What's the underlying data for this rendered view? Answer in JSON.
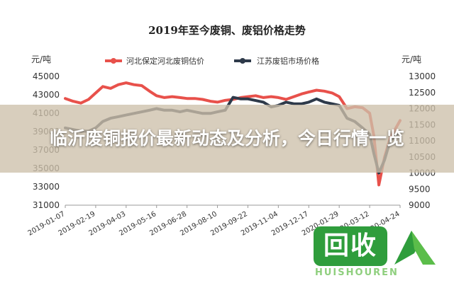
{
  "chart_data": {
    "type": "line",
    "title": "2019年至今废铜、废铝价格走势",
    "left_axis_unit": "元/吨",
    "right_axis_unit": "元/吨",
    "left_ylim": [
      31000,
      45000
    ],
    "left_ticks": [
      "45000",
      "43000",
      "41000",
      "39000",
      "37000",
      "35000",
      "33000",
      "31000"
    ],
    "right_ylim": [
      9000,
      13000
    ],
    "right_ticks": [
      "13000",
      "12500",
      "12000",
      "11500",
      "11000",
      "10500",
      "10000",
      "9500",
      "9000"
    ],
    "x_ticks": [
      "2019-01-07",
      "2019-02-19",
      "2019-04-03",
      "2019-05-16",
      "2019-06-28",
      "2019-08-10",
      "2019-09-22",
      "2019-11-04",
      "2019-12-17",
      "2020-01-29",
      "2020-03-12",
      "2020-04-24"
    ],
    "legend_position": "top",
    "series": [
      {
        "name": "河北保定河北废铜估价",
        "axis": "left",
        "color": "#e8514b",
        "x": [
          "2019-01-07",
          "2019-01-18",
          "2019-01-29",
          "2019-02-09",
          "2019-02-19",
          "2019-03-01",
          "2019-03-12",
          "2019-03-23",
          "2019-04-03",
          "2019-04-14",
          "2019-04-25",
          "2019-05-06",
          "2019-05-16",
          "2019-05-27",
          "2019-06-07",
          "2019-06-18",
          "2019-06-28",
          "2019-07-09",
          "2019-07-20",
          "2019-07-31",
          "2019-08-10",
          "2019-08-21",
          "2019-09-01",
          "2019-09-12",
          "2019-09-22",
          "2019-10-03",
          "2019-10-14",
          "2019-10-25",
          "2019-11-04",
          "2019-11-15",
          "2019-11-26",
          "2019-12-07",
          "2019-12-17",
          "2019-12-28",
          "2020-01-08",
          "2020-01-19",
          "2020-01-29",
          "2020-02-09",
          "2020-02-20",
          "2020-03-02",
          "2020-03-12",
          "2020-03-18",
          "2020-03-25",
          "2020-04-02",
          "2020-04-10",
          "2020-04-24"
        ],
        "values": [
          42600,
          42300,
          42100,
          42500,
          43200,
          43900,
          43700,
          44100,
          44300,
          44100,
          44000,
          43400,
          42900,
          42700,
          42800,
          42700,
          42600,
          42600,
          42500,
          42300,
          42200,
          42400,
          42500,
          42700,
          42800,
          42900,
          42700,
          42800,
          42700,
          42500,
          42800,
          43100,
          43300,
          43500,
          43400,
          43200,
          42800,
          41500,
          41700,
          41600,
          41000,
          38500,
          33200,
          36200,
          38300,
          40200
        ]
      },
      {
        "name": "江苏废铝市场价格",
        "axis": "right",
        "color": "#2e3a4a",
        "x": [
          "2019-01-07",
          "2019-01-18",
          "2019-01-29",
          "2019-02-09",
          "2019-02-19",
          "2019-03-01",
          "2019-03-12",
          "2019-03-23",
          "2019-04-03",
          "2019-04-14",
          "2019-04-25",
          "2019-05-06",
          "2019-05-16",
          "2019-05-27",
          "2019-06-07",
          "2019-06-18",
          "2019-06-28",
          "2019-07-09",
          "2019-07-20",
          "2019-07-31",
          "2019-08-10",
          "2019-08-21",
          "2019-09-01",
          "2019-09-12",
          "2019-09-22",
          "2019-10-03",
          "2019-10-14",
          "2019-10-25",
          "2019-11-04",
          "2019-11-15",
          "2019-11-26",
          "2019-12-07",
          "2019-12-17",
          "2019-12-28",
          "2020-01-08",
          "2020-01-19",
          "2020-01-29",
          "2020-02-09",
          "2020-02-20",
          "2020-03-02",
          "2020-03-12",
          "2020-03-18",
          "2020-03-25",
          "2020-04-02",
          "2020-04-10",
          "2020-04-24"
        ],
        "values": [
          11400,
          11350,
          11300,
          11300,
          11400,
          11600,
          11700,
          11750,
          11800,
          11850,
          11900,
          11950,
          12000,
          11950,
          11950,
          11900,
          11950,
          11900,
          11850,
          11850,
          11900,
          11950,
          12350,
          12300,
          12300,
          12250,
          12200,
          12050,
          12100,
          12200,
          12150,
          12150,
          12200,
          12300,
          12200,
          12150,
          12100,
          11700,
          11600,
          11400,
          11200,
          10600,
          10000,
          10400,
          11000,
          11300
        ]
      }
    ]
  },
  "overlay": {
    "headline": "临沂废铜报价最新动态及分析，今日行情一览"
  },
  "logo": {
    "text": "回收",
    "pinyin": "HUISHOUREN"
  }
}
